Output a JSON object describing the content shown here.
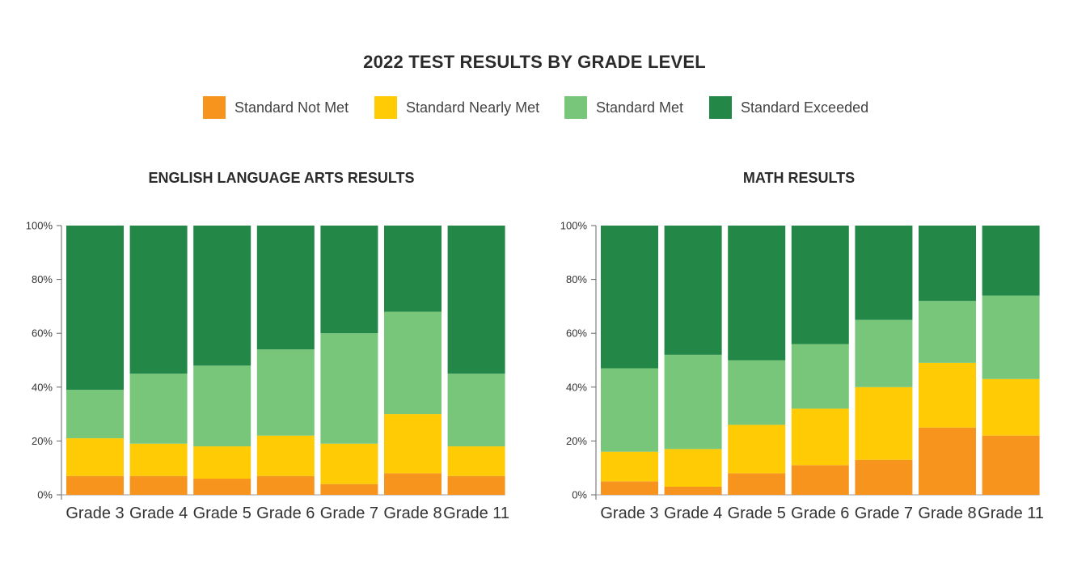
{
  "title": "2022 TEST RESULTS BY GRADE LEVEL",
  "legend": [
    {
      "label": "Standard Not Met",
      "color": "#F7941E"
    },
    {
      "label": "Standard Nearly Met",
      "color": "#FFCB05"
    },
    {
      "label": "Standard Met",
      "color": "#78C67A"
    },
    {
      "label": "Standard Exceeded",
      "color": "#238747"
    }
  ],
  "chart_data": [
    {
      "type": "bar",
      "stacked": true,
      "title": "ENGLISH LANGUAGE ARTS RESULTS",
      "categories": [
        "Grade 3",
        "Grade 4",
        "Grade 5",
        "Grade 6",
        "Grade 7",
        "Grade 8",
        "Grade 11"
      ],
      "yticks": [
        "0%",
        "20%",
        "40%",
        "60%",
        "80%",
        "100%"
      ],
      "ylim": [
        0,
        100
      ],
      "series": [
        {
          "name": "Standard Not Met",
          "values": [
            7,
            7,
            6,
            7,
            4,
            8,
            7
          ]
        },
        {
          "name": "Standard Nearly Met",
          "values": [
            14,
            12,
            12,
            15,
            15,
            22,
            11
          ]
        },
        {
          "name": "Standard Met",
          "values": [
            18,
            26,
            30,
            32,
            41,
            38,
            27
          ]
        },
        {
          "name": "Standard Exceeded",
          "values": [
            61,
            55,
            52,
            46,
            40,
            32,
            55
          ]
        }
      ]
    },
    {
      "type": "bar",
      "stacked": true,
      "title": "MATH RESULTS",
      "categories": [
        "Grade 3",
        "Grade 4",
        "Grade 5",
        "Grade 6",
        "Grade 7",
        "Grade 8",
        "Grade 11"
      ],
      "yticks": [
        "0%",
        "20%",
        "40%",
        "60%",
        "80%",
        "100%"
      ],
      "ylim": [
        0,
        100
      ],
      "series": [
        {
          "name": "Standard Not Met",
          "values": [
            5,
            3,
            8,
            11,
            13,
            25,
            22
          ]
        },
        {
          "name": "Standard Nearly Met",
          "values": [
            11,
            14,
            18,
            21,
            27,
            24,
            21
          ]
        },
        {
          "name": "Standard Met",
          "values": [
            31,
            35,
            24,
            24,
            25,
            23,
            31
          ]
        },
        {
          "name": "Standard Exceeded",
          "values": [
            53,
            48,
            50,
            44,
            35,
            28,
            26
          ]
        }
      ]
    }
  ]
}
